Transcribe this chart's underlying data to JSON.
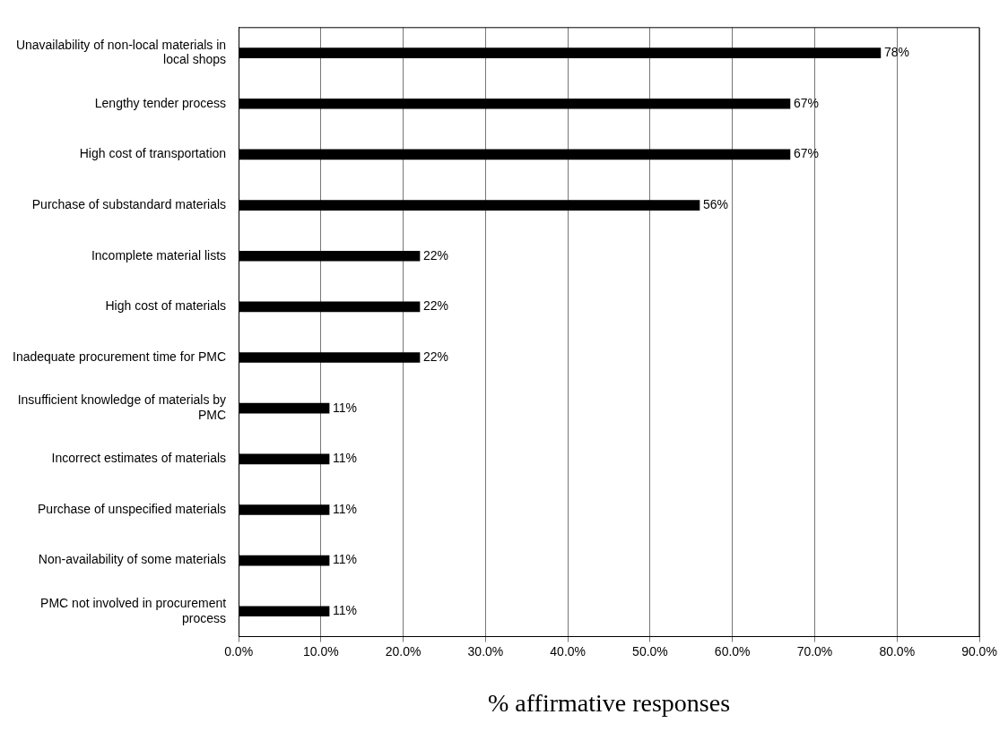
{
  "chart_data": {
    "type": "bar",
    "orientation": "horizontal",
    "xlabel": "% affirmative responses",
    "categories": [
      "Unavailability of non-local materials in local shops",
      "Lengthy tender process",
      "High cost of transportation",
      "Purchase of substandard materials",
      "Incomplete material lists",
      "High cost of materials",
      "Inadequate procurement time for PMC",
      "Insufficient knowledge of materials by PMC",
      "Incorrect estimates of materials",
      "Purchase of unspecified materials",
      "Non-availability of some materials",
      "PMC not involved in procurement process"
    ],
    "values": [
      78,
      67,
      67,
      56,
      22,
      22,
      22,
      11,
      11,
      11,
      11,
      11
    ],
    "value_labels": [
      "78%",
      "67%",
      "67%",
      "56%",
      "22%",
      "22%",
      "22%",
      "11%",
      "11%",
      "11%",
      "11%",
      "11%"
    ],
    "color": "#000000",
    "xlim": [
      0,
      90
    ],
    "xticks": [
      {
        "value": 0,
        "label": "0.0%"
      },
      {
        "value": 10,
        "label": "10.0%"
      },
      {
        "value": 20,
        "label": "20.0%"
      },
      {
        "value": 30,
        "label": "30.0%"
      },
      {
        "value": 40,
        "label": "40.0%"
      },
      {
        "value": 50,
        "label": "50.0%"
      },
      {
        "value": 60,
        "label": "60.0%"
      },
      {
        "value": 70,
        "label": "70.0%"
      },
      {
        "value": 80,
        "label": "80.0%"
      },
      {
        "value": 90,
        "label": "90.0%"
      }
    ],
    "grid": "x",
    "legend": false
  }
}
